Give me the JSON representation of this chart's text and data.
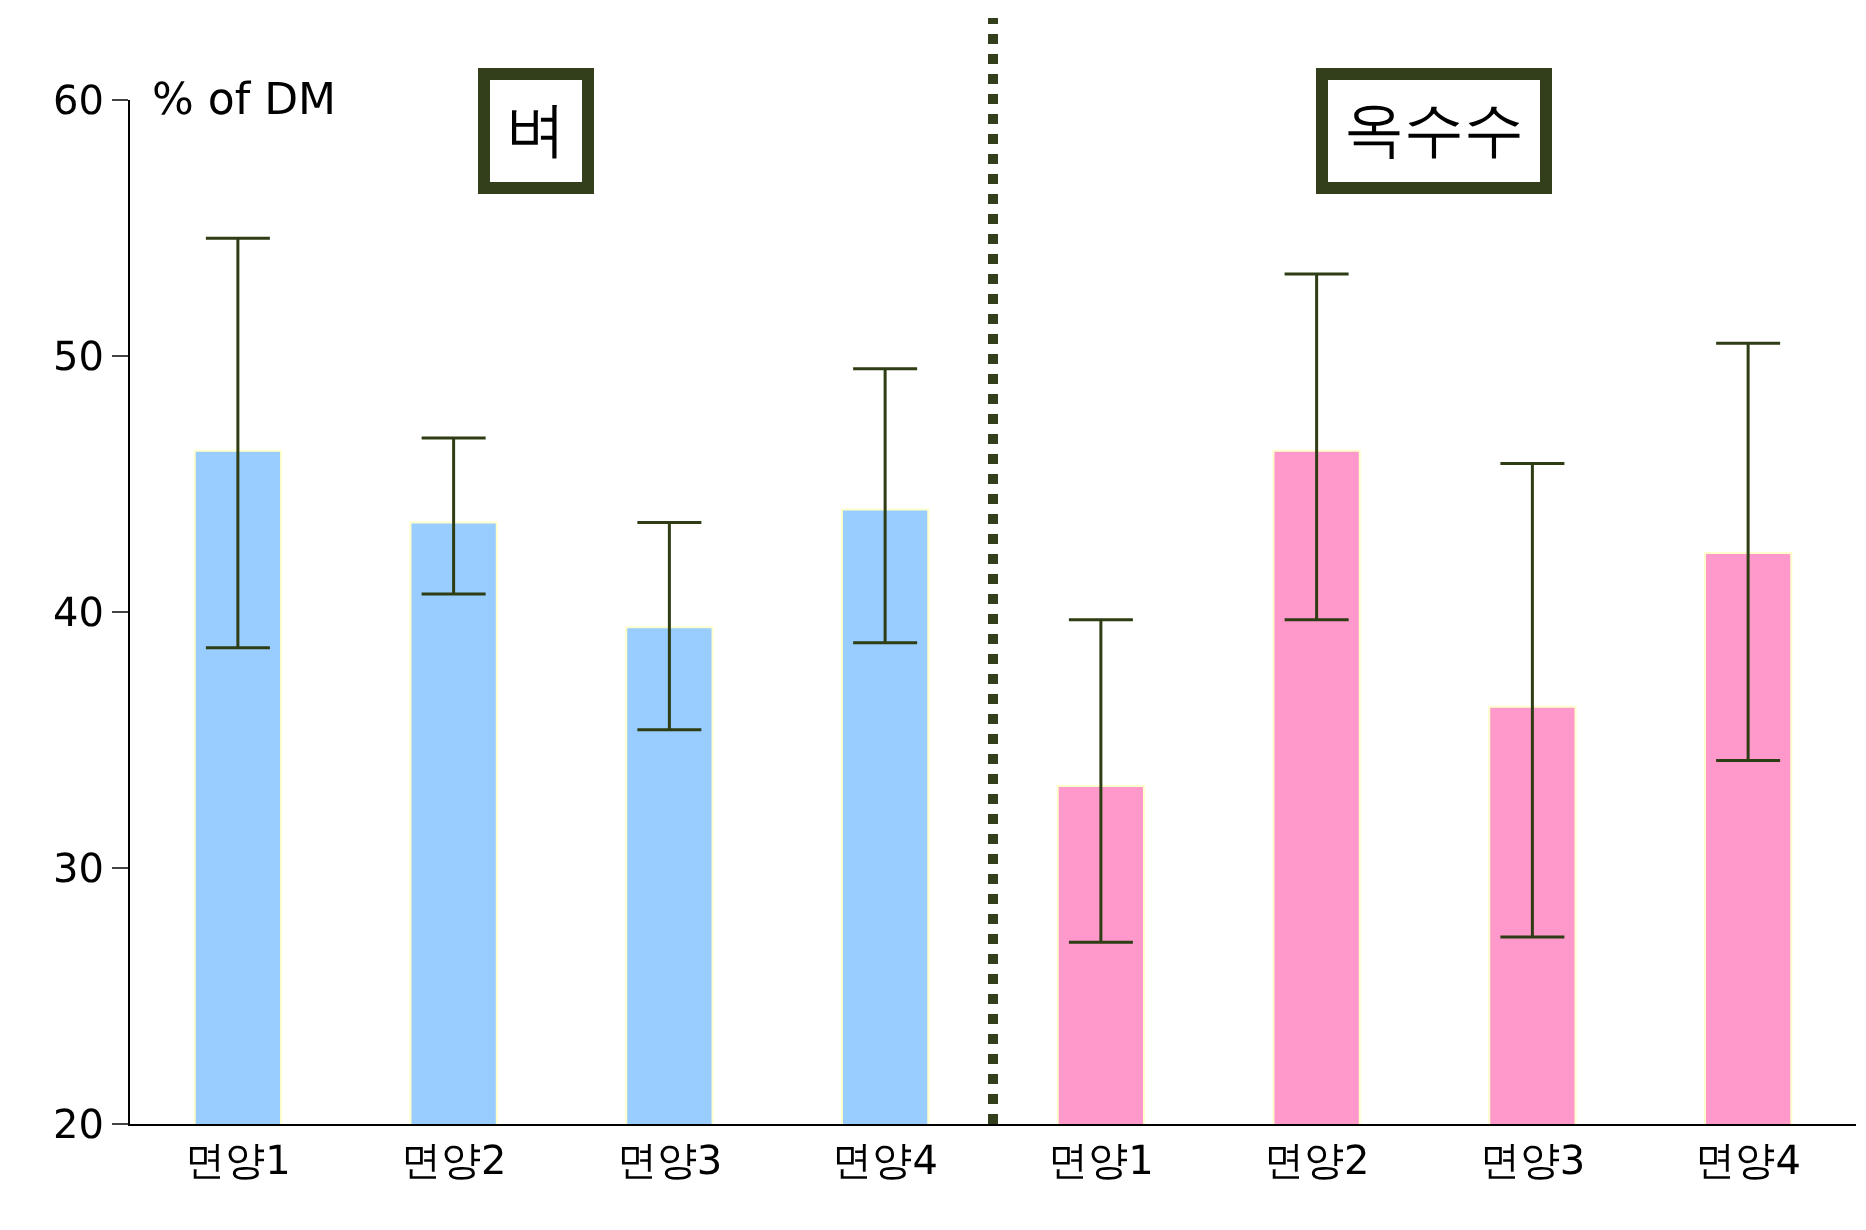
{
  "chart_data": {
    "type": "bar",
    "ylabel": "% of DM",
    "categories": [
      "면양1",
      "면양2",
      "면양3",
      "면양4",
      "면양1",
      "면양2",
      "면양3",
      "면양4"
    ],
    "values": [
      46.3,
      43.5,
      39.4,
      44.0,
      33.2,
      46.3,
      36.3,
      42.3
    ],
    "colors": [
      "#99ccff",
      "#99ccff",
      "#99ccff",
      "#99ccff",
      "#ff99cc",
      "#ff99cc",
      "#ff99cc",
      "#ff99cc"
    ],
    "errors": [
      [
        38.6,
        54.6
      ],
      [
        40.7,
        46.8
      ],
      [
        35.4,
        43.5
      ],
      [
        38.8,
        49.5
      ],
      [
        27.1,
        39.7
      ],
      [
        39.7,
        53.2
      ],
      [
        27.3,
        45.8
      ],
      [
        34.2,
        50.5
      ]
    ],
    "ylim": [
      20,
      60
    ],
    "yticks": [
      20,
      30,
      40,
      50,
      60
    ],
    "grid": false,
    "annotations": [
      "벼",
      "옥수수"
    ]
  }
}
